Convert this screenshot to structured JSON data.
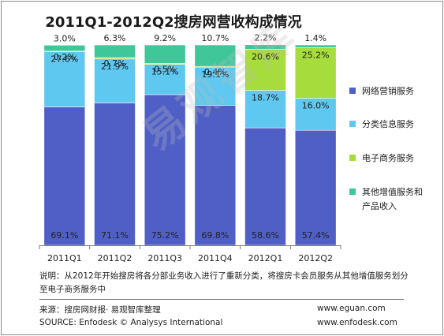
{
  "chart_data": {
    "type": "bar",
    "stacked": true,
    "percent": true,
    "title": "2011Q1-2012Q2搜房网营收构成情况",
    "categories": [
      "2011Q1",
      "2011Q2",
      "2011Q3",
      "2011Q4",
      "2012Q1",
      "2012Q2"
    ],
    "ylim": [
      0,
      100
    ],
    "grid": false,
    "legend_position": "right",
    "series": [
      {
        "name": "网络营销服务",
        "color": "#4f5fc6",
        "values": [
          69.1,
          71.1,
          75.2,
          69.8,
          58.6,
          57.4
        ],
        "labels": [
          "69.1%",
          "71.1%",
          "75.2%",
          "69.8%",
          "58.6%",
          "57.4%"
        ]
      },
      {
        "name": "分类信息服务",
        "color": "#5ec8f0",
        "values": [
          27.6,
          21.9,
          15.1,
          19.1,
          18.7,
          16.0
        ],
        "labels": [
          "27.6%",
          "21.9%",
          "15.1%",
          "19.1%",
          "18.7%",
          "16.0%"
        ]
      },
      {
        "name": "电子商务服务",
        "color": "#a6dc3c",
        "values": [
          0.2,
          0.7,
          0.5,
          0.4,
          20.6,
          25.2
        ],
        "labels": [
          "0.2%",
          "0.7%",
          "0.5%",
          "0.4%",
          "20.6%",
          "25.2%"
        ]
      },
      {
        "name": "其他增值服务和产品收入",
        "legend_lines": [
          "其他增值服务和",
          "产品收入"
        ],
        "color": "#3fc79a",
        "values": [
          3.0,
          6.3,
          9.2,
          10.7,
          2.2,
          1.4
        ],
        "labels": [
          "3.0%",
          "6.3%",
          "9.2%",
          "10.7%",
          "2.2%",
          "1.4%"
        ]
      }
    ]
  },
  "note": {
    "line1": "说明：从2012年开始搜房将各分部业务收入进行了重新分类，将搜房卡会员服务从其他增值服务划分",
    "line2": "至电子商务服务中"
  },
  "source": {
    "cn": "来源：搜房网财报· 易观智库整理",
    "en": "SOURCE: Enfodesk © Analysys International",
    "url1": "www.eguan.com",
    "url2": "www.enfodesk.com"
  },
  "watermark": "易观智库"
}
